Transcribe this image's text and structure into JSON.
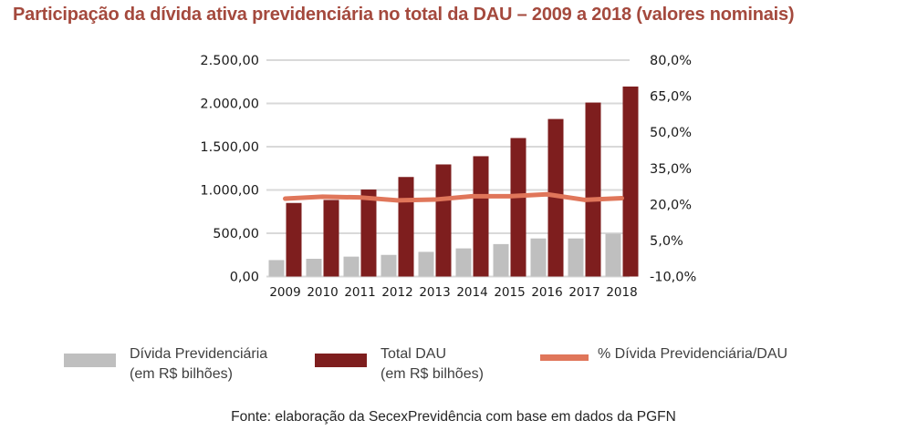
{
  "title": "Participação da dívida ativa previdenciária no total da DAU – 2009 a 2018 (valores nominais)",
  "colors": {
    "title": "#a4493d",
    "bar_gray": "#bfbfbf",
    "bar_dark_red": "#7e1e1e",
    "percent_line": "#e0765a",
    "gridline": "#d9d9d9",
    "axis_text": "#1a1a1a",
    "legend_text": "#3f3f3f"
  },
  "chart_data": {
    "type": "bar+line combo",
    "title": "Participação da dívida ativa previdenciária no total da DAU – 2009 a 2018 (valores nominais)",
    "categories": [
      "2009",
      "2010",
      "2011",
      "2012",
      "2013",
      "2014",
      "2015",
      "2016",
      "2017",
      "2018"
    ],
    "series": [
      {
        "name": "Dívida Previdenciária (em R$ bilhões)",
        "chart": "bar",
        "axis": "left",
        "color": "#bfbfbf",
        "values": [
          190,
          205,
          230,
          250,
          285,
          325,
          375,
          440,
          440,
          495
        ]
      },
      {
        "name": "Total DAU (em R$ bilhões)",
        "chart": "bar",
        "axis": "left",
        "color": "#7e1e1e",
        "values": [
          850,
          885,
          1005,
          1150,
          1295,
          1390,
          1600,
          1820,
          2010,
          2195
        ]
      },
      {
        "name": "% Dívida Previdenciária/DAU",
        "chart": "line",
        "axis": "right",
        "color": "#e0765a",
        "values": [
          22.4,
          23.2,
          22.9,
          21.7,
          22.0,
          23.4,
          23.4,
          24.2,
          21.9,
          22.6
        ]
      }
    ],
    "left_axis": {
      "min": 0,
      "max": 2500,
      "step": 500,
      "tick_values": [
        2500,
        2000,
        1500,
        1000,
        500,
        0
      ],
      "tick_labels": [
        "2.500,00",
        "2.000,00",
        "1.500,00",
        "1.000,00",
        "500,00",
        "0,00"
      ]
    },
    "right_axis": {
      "min": -10,
      "max": 80,
      "step": 15,
      "tick_values": [
        80,
        65,
        50,
        35,
        20,
        5,
        -10
      ],
      "tick_labels": [
        "80,0%",
        "65,0%",
        "50,0%",
        "35,0%",
        "20,0%",
        "5,0%",
        "-10,0%"
      ]
    },
    "gridlines": true,
    "legend_position": "bottom"
  },
  "legend": {
    "items": [
      {
        "line1": "Dívida Previdenciária",
        "line2": "(em R$ bilhões)",
        "swatch_type": "bar",
        "color": "#bfbfbf"
      },
      {
        "line1": "Total DAU",
        "line2": "(em R$ bilhões)",
        "swatch_type": "bar",
        "color": "#7e1e1e"
      },
      {
        "line1": "% Dívida Previdenciária/DAU",
        "line2": "",
        "swatch_type": "line",
        "color": "#e0765a"
      }
    ]
  },
  "footer": {
    "source": "Fonte: elaboração da SecexPrevidência com base em dados da PGFN"
  }
}
